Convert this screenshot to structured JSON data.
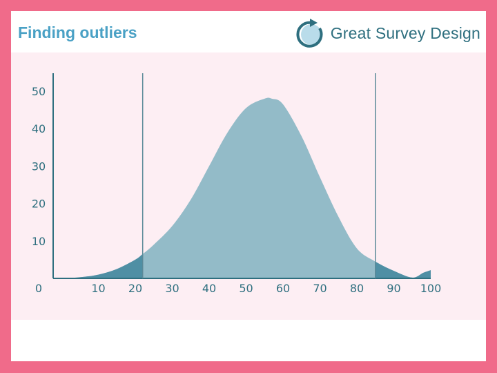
{
  "header": {
    "title": "Finding outliers",
    "brand": "Great Survey Design"
  },
  "colors": {
    "frame": "#f06b8a",
    "title": "#4aa1c5",
    "panel": "#fdeef3",
    "curve_fill": "#93bbc8",
    "tail_fill": "#4f8fa4",
    "axis": "#2e6f7f"
  },
  "chart_data": {
    "type": "area",
    "x": [
      0,
      5,
      10,
      15,
      20,
      22,
      25,
      30,
      35,
      40,
      45,
      50,
      55,
      57,
      60,
      65,
      70,
      75,
      80,
      85,
      90,
      95,
      98,
      100
    ],
    "y": [
      0,
      0.3,
      1,
      2.5,
      5,
      6.5,
      9,
      14,
      21,
      30,
      39,
      45.5,
      48,
      48,
      46.5,
      38,
      27,
      16.5,
      8,
      4.5,
      2,
      0.2,
      1.5,
      2.2
    ],
    "xticks": [
      0,
      10,
      20,
      30,
      40,
      50,
      60,
      70,
      80,
      90,
      100
    ],
    "yticks": [
      10,
      20,
      30,
      40,
      50
    ],
    "xlim": [
      0,
      100
    ],
    "ylim": [
      0,
      50
    ],
    "cutoffs": [
      22,
      85
    ],
    "grid": false,
    "legend": "none"
  }
}
